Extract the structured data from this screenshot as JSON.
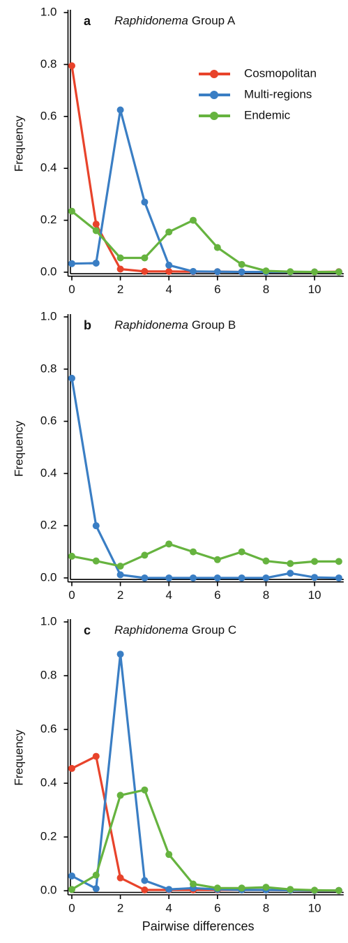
{
  "chart_data": [
    {
      "type": "line",
      "label": "a",
      "genus": "Raphidonema",
      "title": "Group A",
      "ylabel": "Frequency",
      "x": [
        0,
        1,
        2,
        3,
        4,
        5,
        6,
        7,
        8,
        9,
        10,
        11
      ],
      "xlim": [
        -0.1,
        11.2
      ],
      "xticks": [
        0,
        2,
        4,
        6,
        8,
        10
      ],
      "ylim": [
        -0.01,
        1.0
      ],
      "yticks": [
        {
          "value": 0,
          "label": "0.0"
        },
        0.2,
        0.4,
        0.6,
        0.8,
        {
          "value": 1,
          "label": "1.0"
        }
      ],
      "legend": "upper right",
      "series": [
        {
          "name": "Cosmopolitan",
          "color": "#e8432b",
          "values": [
            0.795,
            0.185,
            0.012,
            0.003,
            0.003,
            0.002,
            0.002,
            0.001,
            0.001,
            0.001,
            0.001,
            0.002
          ]
        },
        {
          "name": "Multi-regions",
          "color": "#3a7ec4",
          "values": [
            0.033,
            0.035,
            0.625,
            0.27,
            0.027,
            0.003,
            0.002,
            0.001,
            0.001,
            0.001,
            0.001,
            0.001
          ]
        },
        {
          "name": "Endemic",
          "color": "#66b33f",
          "values": [
            0.235,
            0.16,
            0.055,
            0.055,
            0.155,
            0.2,
            0.095,
            0.03,
            0.005,
            0.002,
            0.001,
            0.001
          ]
        }
      ]
    },
    {
      "type": "line",
      "label": "b",
      "genus": "Raphidonema",
      "title": "Group B",
      "ylabel": "Frequency",
      "x": [
        0,
        1,
        2,
        3,
        4,
        5,
        6,
        7,
        8,
        9,
        10,
        11
      ],
      "xlim": [
        -0.1,
        11.2
      ],
      "xticks": [
        0,
        2,
        4,
        6,
        8,
        10
      ],
      "ylim": [
        -0.01,
        1.0
      ],
      "yticks": [
        {
          "value": 0,
          "label": "0.0"
        },
        0.2,
        0.4,
        0.6,
        0.8,
        {
          "value": 1,
          "label": "1.0"
        }
      ],
      "series": [
        {
          "color": "#3a7ec4",
          "values": [
            0.765,
            0.2,
            0.012,
            0,
            0,
            0,
            0,
            0,
            0,
            0.018,
            0.002,
            0
          ]
        },
        {
          "color": "#66b33f",
          "values": [
            0.083,
            0.065,
            0.045,
            0.087,
            0.13,
            0.1,
            0.07,
            0.1,
            0.065,
            0.055,
            0.063,
            0.063
          ]
        }
      ]
    },
    {
      "type": "line",
      "label": "c",
      "genus": "Raphidonema",
      "title": "Group C",
      "ylabel": "Frequency",
      "xlabel": "Pairwise differences",
      "x": [
        0,
        1,
        2,
        3,
        4,
        5,
        6,
        7,
        8,
        9,
        10,
        11
      ],
      "xlim": [
        -0.1,
        11.2
      ],
      "xticks": [
        0,
        2,
        4,
        6,
        8,
        10
      ],
      "ylim": [
        -0.01,
        1.0
      ],
      "yticks": [
        {
          "value": 0,
          "label": "0.0"
        },
        0.2,
        0.4,
        0.6,
        0.8,
        {
          "value": 1,
          "label": "1.0"
        }
      ],
      "series": [
        {
          "color": "#e8432b",
          "values": [
            0.455,
            0.5,
            0.048,
            0.003,
            0.003,
            0.003,
            0.003,
            0.003,
            0.003,
            0.002,
            0.001,
            0.001
          ]
        },
        {
          "color": "#3a7ec4",
          "values": [
            0.055,
            0.008,
            0.88,
            0.038,
            0.005,
            0.01,
            0.005,
            0.003,
            0.003,
            0.002,
            0.001,
            0.001
          ]
        },
        {
          "color": "#66b33f",
          "values": [
            0.005,
            0.058,
            0.355,
            0.375,
            0.135,
            0.025,
            0.01,
            0.01,
            0.013,
            0.005,
            0.002,
            0.001
          ]
        }
      ]
    }
  ]
}
